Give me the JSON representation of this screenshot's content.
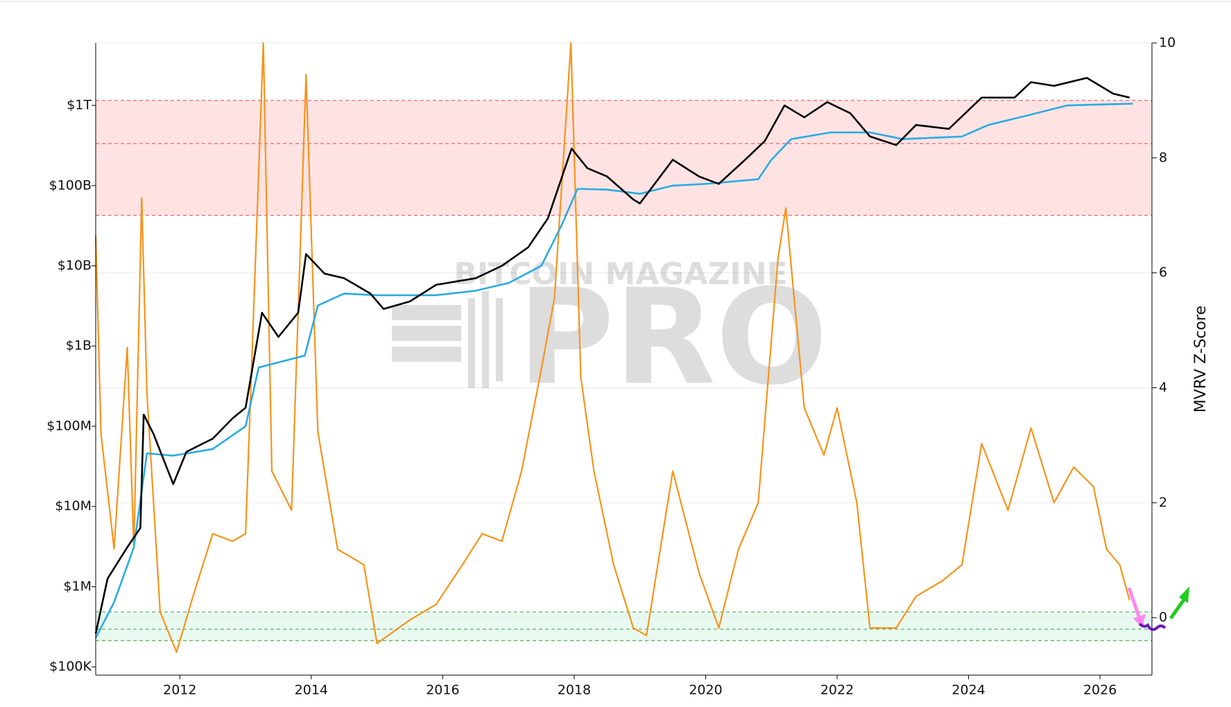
{
  "chart_data": {
    "type": "line",
    "yscale": "log",
    "grid": "y2",
    "watermark": [
      "BITCOIN MAGAZINE",
      "PRO"
    ],
    "y2_label": "MVRV Z-Score",
    "xlim": [
      2010.72,
      2026.79
    ],
    "xticks": [
      2012,
      2014,
      2016,
      2018,
      2020,
      2022,
      2024,
      2026
    ],
    "ylim": [
      79000,
      6000000000000
    ],
    "yticks": [
      {
        "value": 100000,
        "label": "$100K"
      },
      {
        "value": 1000000,
        "label": "$1M"
      },
      {
        "value": 10000000,
        "label": "$10M"
      },
      {
        "value": 100000000,
        "label": "$100M"
      },
      {
        "value": 1000000000,
        "label": "$1B"
      },
      {
        "value": 10000000000,
        "label": "$10B"
      },
      {
        "value": 100000000000,
        "label": "$100B"
      },
      {
        "value": 1000000000000,
        "label": "$1T"
      }
    ],
    "y2lim": [
      -1,
      10
    ],
    "y2ticks": [
      0,
      2,
      4,
      6,
      8,
      10
    ],
    "red_zone": {
      "lines": [
        7,
        8.25,
        9
      ],
      "color": "#e06666"
    },
    "green_zone": {
      "lines": [
        -0.4,
        -0.2,
        0.1
      ],
      "color": "#4caf50"
    },
    "series": [
      {
        "color": "#000000",
        "x": [
          2010.72,
          2010.9,
          2011.2,
          2011.4,
          2011.45,
          2011.6,
          2011.9,
          2012.1,
          2012.5,
          2012.8,
          2013.0,
          2013.25,
          2013.5,
          2013.8,
          2013.92,
          2014.2,
          2014.5,
          2014.9,
          2015.1,
          2015.5,
          2015.9,
          2016.5,
          2016.9,
          2017.3,
          2017.6,
          2017.96,
          2018.2,
          2018.5,
          2018.9,
          2019.0,
          2019.5,
          2019.9,
          2020.2,
          2020.6,
          2020.9,
          2021.2,
          2021.5,
          2021.85,
          2022.2,
          2022.5,
          2022.9,
          2023.2,
          2023.7,
          2024.2,
          2024.7,
          2024.95,
          2025.3,
          2025.8,
          2026.2,
          2026.45
        ],
        "values": [
          260000,
          1260000,
          3100000,
          5400000,
          140000000,
          80000000,
          19000000,
          48000000,
          70000000,
          125000000,
          170000000,
          2600000000,
          1300000000,
          2600000000,
          14000000000,
          8000000000,
          7000000000,
          4500000000,
          2900000000,
          3600000000,
          5800000000,
          7000000000,
          10000000000,
          17000000000,
          39000000000,
          290000000000,
          165000000000,
          130000000000,
          67000000000,
          60000000000,
          210000000000,
          130000000000,
          105000000000,
          210000000000,
          360000000000,
          1000000000000,
          710000000000,
          1100000000000,
          800000000000,
          410000000000,
          320000000000,
          570000000000,
          510000000000,
          1250000000000,
          1250000000000,
          1950000000000,
          1750000000000,
          2200000000000,
          1400000000000,
          1250000000000
        ]
      },
      {
        "color": "#29abe2",
        "x": [
          2010.72,
          2011.0,
          2011.3,
          2011.5,
          2011.9,
          2012.5,
          2013.0,
          2013.2,
          2013.9,
          2014.1,
          2014.5,
          2015.0,
          2015.9,
          2016.5,
          2017.0,
          2017.5,
          2017.8,
          2018.05,
          2018.5,
          2019.0,
          2019.5,
          2020.0,
          2020.8,
          2021.0,
          2021.3,
          2021.9,
          2022.5,
          2023.0,
          2023.9,
          2024.3,
          2024.9,
          2025.5,
          2026.5
        ],
        "values": [
          230000,
          640000,
          3100000,
          46000000,
          43000000,
          52000000,
          100000000,
          540000000,
          760000000,
          3200000000,
          4500000000,
          4300000000,
          4300000000,
          4900000000,
          6100000000,
          10000000000,
          31000000000,
          91000000000,
          89000000000,
          79000000000,
          100000000000,
          105000000000,
          120000000000,
          210000000000,
          380000000000,
          460000000000,
          460000000000,
          380000000000,
          410000000000,
          570000000000,
          750000000000,
          1000000000000,
          1050000000000
        ]
      },
      {
        "color": "#f7931a",
        "axis": "y2",
        "x": [
          2010.72,
          2010.8,
          2011.0,
          2011.2,
          2011.3,
          2011.42,
          2011.5,
          2011.7,
          2011.95,
          2012.2,
          2012.5,
          2012.8,
          2013.0,
          2013.27,
          2013.4,
          2013.7,
          2013.92,
          2014.1,
          2014.4,
          2014.8,
          2015.0,
          2015.5,
          2015.9,
          2016.3,
          2016.6,
          2016.9,
          2017.2,
          2017.5,
          2017.7,
          2017.95,
          2018.1,
          2018.3,
          2018.6,
          2018.9,
          2019.1,
          2019.5,
          2019.9,
          2020.2,
          2020.5,
          2020.8,
          2021.1,
          2021.22,
          2021.5,
          2021.8,
          2022.0,
          2022.3,
          2022.5,
          2022.9,
          2023.2,
          2023.6,
          2023.9,
          2024.2,
          2024.6,
          2024.95,
          2025.3,
          2025.6,
          2025.9,
          2026.1,
          2026.3,
          2026.45
        ],
        "values": [
          6.65,
          3.2,
          1.2,
          4.7,
          1.2,
          7.3,
          3.9,
          0.1,
          -0.6,
          0.37,
          1.46,
          1.33,
          1.46,
          10,
          2.55,
          1.87,
          9.45,
          3.24,
          1.19,
          0.92,
          -0.45,
          -0.04,
          0.23,
          0.92,
          1.46,
          1.33,
          2.55,
          4.33,
          5.56,
          10,
          4.19,
          2.55,
          0.92,
          -0.18,
          -0.31,
          2.55,
          0.78,
          -0.18,
          1.19,
          2.0,
          6.24,
          7.13,
          3.65,
          2.83,
          3.65,
          2.0,
          -0.18,
          -0.18,
          0.37,
          0.64,
          0.92,
          3.03,
          1.87,
          3.3,
          2.0,
          2.62,
          2.28,
          1.19,
          0.92,
          0.3
        ]
      }
    ]
  }
}
